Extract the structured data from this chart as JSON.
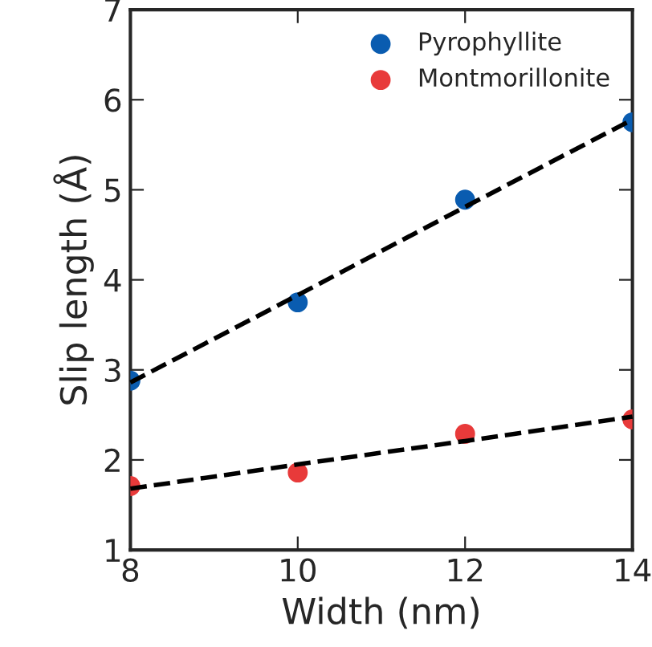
{
  "chart_data": {
    "type": "scatter",
    "xlabel": "Width (nm)",
    "ylabel": "Slip length (Å)",
    "x": [
      8,
      10,
      12,
      14
    ],
    "series": [
      {
        "name": "Pyrophyllite",
        "color": "#0a5cb0",
        "values": [
          2.88,
          3.75,
          4.89,
          5.75
        ]
      },
      {
        "name": "Montmorillonite",
        "color": "#e83a3a",
        "values": [
          1.71,
          1.86,
          2.29,
          2.45
        ]
      },
      {
        "type": "line",
        "color": "#000000",
        "values": [
          2.86,
          3.83,
          4.81,
          5.78
        ],
        "line_style": "dashed",
        "marker": "none"
      },
      {
        "type": "line",
        "color": "#000000",
        "values": [
          1.68,
          1.95,
          2.21,
          2.48
        ],
        "line_style": "dashed",
        "marker": "none"
      }
    ],
    "xlim": [
      8,
      14
    ],
    "ylim": [
      1,
      7
    ],
    "xticks": [
      8,
      10,
      12,
      14
    ],
    "yticks": [
      1,
      2,
      3,
      4,
      5,
      6,
      7
    ],
    "marker": "circle",
    "legend": "top right",
    "grid": false
  }
}
